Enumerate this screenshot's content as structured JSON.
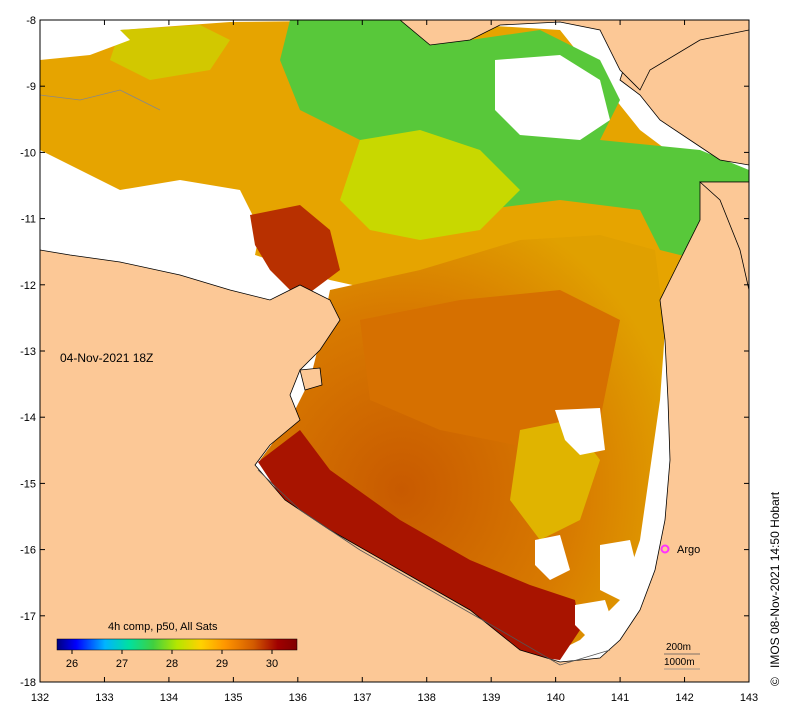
{
  "map": {
    "timestamp_label": "04-Nov-2021 18Z",
    "credit": "IMOS 08-Nov-2021 14:50 Hobart",
    "credit_symbol": "©",
    "argo_label": "Argo",
    "argo_color": "#ff33ff",
    "land_color": "#fcc896",
    "depth_labels": [
      "200m",
      "1000m"
    ]
  },
  "colorbar": {
    "title": "4h comp, p50, All Sats",
    "ticks": [
      "26",
      "27",
      "28",
      "29",
      "30"
    ],
    "min": 25.7,
    "max": 30.5,
    "stops": [
      "#00007f",
      "#0000ff",
      "#00b4ff",
      "#00e0a0",
      "#40d040",
      "#b4e600",
      "#ffd200",
      "#ff9600",
      "#d25a00",
      "#a00000",
      "#800000"
    ]
  },
  "axes": {
    "x_ticks": [
      "132",
      "133",
      "134",
      "135",
      "136",
      "137",
      "138",
      "139",
      "140",
      "141",
      "142",
      "143"
    ],
    "y_ticks": [
      "-8",
      "-9",
      "-10",
      "-11",
      "-12",
      "-13",
      "-14",
      "-15",
      "-16",
      "-17",
      "-18"
    ],
    "x_range": [
      132,
      143
    ],
    "y_range": [
      -18,
      -8
    ]
  }
}
